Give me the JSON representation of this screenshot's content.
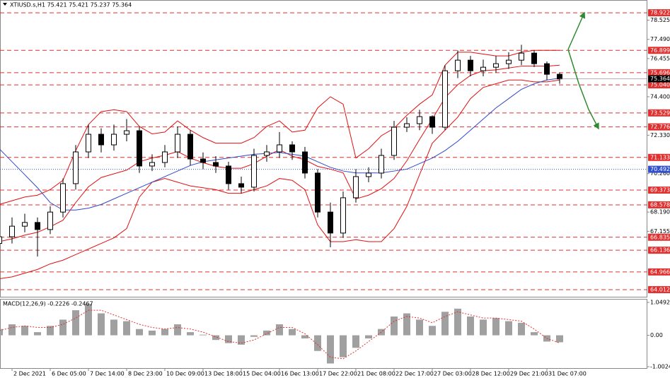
{
  "chart_data": [
    {
      "type": "candlestick",
      "title": "XTIUSD.s,H1 75.421 75.421 75.237 75.364",
      "categories": [
        null,
        "2 Dec 2021",
        null,
        null,
        "6 Dec 05:00",
        null,
        null,
        "7 Dec 14:00",
        null,
        null,
        "8 Dec 23:00",
        null,
        null,
        "10 Dec 09:00",
        null,
        null,
        "13 Dec 18:00",
        null,
        null,
        "15 Dec 04:00",
        null,
        null,
        "16 Dec 13:00",
        null,
        null,
        "17 Dec 22:00",
        null,
        null,
        "21 Dec 08:00",
        null,
        null,
        "22 Dec 17:00",
        null,
        null,
        "27 Dec 03:00",
        null,
        null,
        "28 Dec 12:00",
        null,
        null,
        "29 Dec 21:00",
        null,
        null,
        "31 Dec 07:00",
        null
      ],
      "open": [
        66.5,
        66.86,
        67.43,
        67.63,
        67.25,
        68.19,
        69.72,
        71.43,
        72.38,
        71.81,
        72.38,
        72.57,
        70.67,
        70.86,
        71.43,
        72.38,
        71.05,
        70.86,
        70.67,
        69.72,
        69.53,
        71.24,
        71.43,
        71.81,
        71.43,
        70.29,
        68.19,
        67.06,
        68.96,
        70.1,
        70.29,
        71.24,
        72.76,
        72.95,
        73.33,
        72.76,
        75.8,
        76.37,
        75.8,
        75.99,
        76.18,
        76.37,
        76.75,
        76.18,
        75.61
      ],
      "high": [
        67.2,
        67.9,
        68.1,
        67.9,
        68.5,
        70.0,
        71.8,
        72.9,
        72.7,
        72.9,
        73.2,
        72.8,
        71.3,
        71.8,
        72.8,
        72.6,
        71.4,
        71.2,
        70.9,
        70.1,
        71.6,
        71.8,
        72.5,
        72.0,
        71.7,
        70.5,
        68.7,
        69.3,
        70.5,
        70.6,
        71.6,
        73.1,
        73.3,
        73.7,
        73.4,
        76.1,
        76.9,
        76.6,
        76.4,
        76.6,
        76.8,
        77.2,
        76.9,
        76.3,
        75.7
      ],
      "low": [
        66.2,
        66.5,
        67.1,
        65.8,
        67.0,
        67.9,
        69.4,
        71.1,
        71.4,
        71.5,
        72.0,
        70.3,
        70.4,
        70.6,
        71.1,
        70.7,
        70.5,
        70.3,
        69.4,
        69.2,
        69.3,
        70.9,
        71.1,
        71.0,
        70.0,
        67.9,
        66.3,
        66.8,
        68.7,
        69.8,
        70.0,
        71.0,
        72.5,
        72.6,
        72.4,
        72.6,
        75.4,
        75.5,
        75.5,
        75.7,
        75.9,
        76.1,
        76.0,
        75.3,
        75.1
      ],
      "close": [
        66.86,
        67.43,
        67.63,
        67.25,
        68.19,
        69.72,
        71.43,
        72.38,
        71.81,
        72.38,
        72.57,
        70.67,
        70.86,
        71.43,
        72.38,
        71.05,
        70.86,
        70.67,
        69.72,
        69.53,
        71.24,
        71.43,
        71.81,
        71.43,
        70.29,
        68.19,
        67.06,
        68.96,
        70.1,
        70.29,
        71.24,
        72.76,
        72.95,
        73.33,
        72.76,
        75.8,
        76.37,
        75.8,
        75.99,
        76.18,
        76.37,
        76.75,
        76.18,
        75.61,
        75.36
      ],
      "overlays": [
        {
          "color": "#e01010",
          "values": [
            68.6,
            68.8,
            69.0,
            69.1,
            69.4,
            69.9,
            71.5,
            72.9,
            73.6,
            73.7,
            73.6,
            72.8,
            72.4,
            72.5,
            73.1,
            72.6,
            72.2,
            71.9,
            71.9,
            71.9,
            72.2,
            72.8,
            73.1,
            72.5,
            72.6,
            73.8,
            74.4,
            74.0,
            71.1,
            71.6,
            72.3,
            72.7,
            73.4,
            74.0,
            74.5,
            76.1,
            76.8,
            76.8,
            76.7,
            76.6,
            76.6,
            76.8,
            76.9,
            76.9,
            76.9
          ]
        },
        {
          "color": "#e01010",
          "values": [
            66.6,
            66.75,
            66.95,
            67.1,
            67.4,
            67.75,
            68.7,
            69.55,
            70.05,
            70.25,
            70.45,
            70.9,
            71.1,
            71.25,
            71.45,
            71.1,
            70.85,
            70.65,
            70.55,
            70.55,
            70.8,
            71.2,
            71.55,
            71.2,
            71.0,
            70.65,
            70.5,
            70.3,
            68.9,
            69.1,
            69.45,
            70.0,
            70.95,
            72.1,
            73.2,
            74.35,
            75.05,
            75.55,
            75.8,
            75.85,
            75.95,
            76.05,
            76.05,
            76.05,
            76.1
          ]
        },
        {
          "color": "#e01010",
          "values": [
            64.6,
            64.7,
            64.9,
            65.1,
            65.4,
            65.6,
            65.9,
            66.2,
            66.5,
            66.8,
            67.3,
            69.0,
            69.8,
            70.0,
            69.8,
            69.6,
            69.5,
            69.4,
            69.2,
            69.2,
            69.4,
            69.6,
            70.0,
            69.9,
            69.4,
            67.5,
            66.6,
            66.6,
            66.7,
            66.6,
            66.6,
            67.3,
            68.5,
            70.2,
            71.9,
            72.6,
            73.3,
            74.3,
            74.9,
            75.1,
            75.3,
            75.3,
            75.2,
            75.2,
            75.3
          ]
        },
        {
          "color": "#3048c8",
          "values": [
            71.6,
            70.9,
            70.2,
            69.5,
            68.7,
            68.3,
            68.3,
            68.4,
            68.6,
            68.9,
            69.2,
            69.5,
            69.8,
            70.1,
            70.4,
            70.7,
            70.9,
            71.0,
            71.1,
            71.2,
            71.3,
            71.35,
            71.4,
            71.3,
            71.2,
            70.9,
            70.6,
            70.4,
            70.3,
            70.3,
            70.3,
            70.4,
            70.5,
            70.8,
            71.1,
            71.5,
            72.0,
            72.6,
            73.2,
            73.8,
            74.3,
            74.8,
            75.1,
            75.3,
            75.4
          ]
        }
      ],
      "ylim": [
        63.63,
        79.61
      ],
      "yticks": [
        78.525,
        {
          "value": 77.49,
          "label": "77.490"
        },
        76.455,
        {
          "value": 74.4,
          "label": "74.400"
        },
        {
          "value": 72.33,
          "label": "72.330"
        },
        {
          "value": 70.26,
          "label": "70.260"
        },
        {
          "value": 68.19,
          "label": "68.190"
        },
        67.155
      ],
      "levels": [
        78.922,
        76.899,
        75.696,
        {
          "value": 75.04,
          "label": "75.040"
        },
        73.529,
        72.776,
        71.133,
        69.373,
        68.578,
        66.835,
        66.136,
        64.966,
        64.012
      ],
      "level_color": "#e03030",
      "pivot_level": 70.492,
      "pivot_color": "#3050d0",
      "last_price": 75.364
    },
    {
      "type": "macd",
      "title": "MACD(12,26,9) -0.2226 -0.2467",
      "values": [
        0.2,
        0.35,
        0.3,
        0.1,
        0.3,
        0.5,
        0.8,
        1.0,
        0.7,
        0.5,
        0.45,
        0.2,
        0.15,
        0.2,
        0.35,
        0.1,
        0.02,
        -0.15,
        -0.25,
        -0.3,
        -0.05,
        0.15,
        0.35,
        0.2,
        -0.1,
        -0.5,
        -0.9,
        -0.7,
        -0.4,
        -0.1,
        0.2,
        0.6,
        0.7,
        0.5,
        0.3,
        0.75,
        0.85,
        0.6,
        0.5,
        0.55,
        0.45,
        0.4,
        0.1,
        -0.2,
        -0.2226
      ],
      "signal": [
        0.15,
        0.25,
        0.3,
        0.25,
        0.25,
        0.35,
        0.55,
        0.8,
        0.8,
        0.65,
        0.5,
        0.35,
        0.25,
        0.2,
        0.25,
        0.2,
        0.1,
        -0.05,
        -0.2,
        -0.25,
        -0.15,
        0.05,
        0.25,
        0.25,
        0.05,
        -0.3,
        -0.7,
        -0.75,
        -0.5,
        -0.2,
        0.1,
        0.45,
        0.6,
        0.55,
        0.4,
        0.6,
        0.75,
        0.65,
        0.55,
        0.55,
        0.5,
        0.45,
        0.2,
        -0.1,
        -0.2467
      ],
      "color": "#a0a0a0",
      "signal_color": "#e03030",
      "ylim": [
        -1.07,
        1.14
      ],
      "yticks": [
        1.0492,
        {
          "value": 0,
          "label": "0.00"
        },
        -1.0024
      ]
    }
  ]
}
